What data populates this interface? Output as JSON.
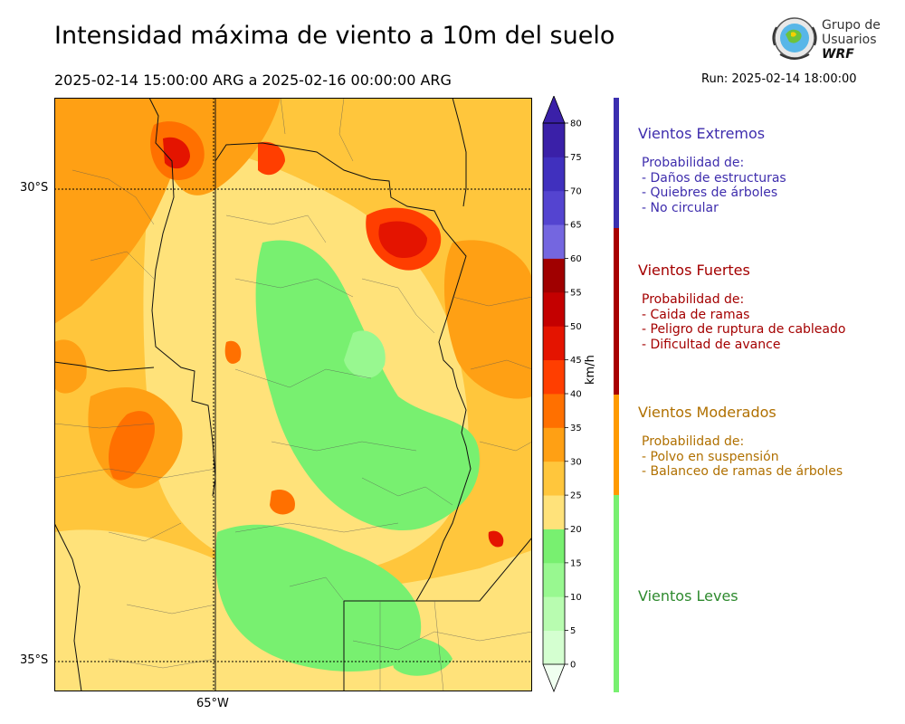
{
  "header": {
    "title": "Intensidad máxima de viento a 10m del suelo",
    "period": "2025-02-14 15:00:00 ARG  a  2025-02-16 00:00:00 ARG",
    "run": "Run: 2025-02-14 18:00:00"
  },
  "logo": {
    "line1": "Grupo de",
    "line2": "Usuarios",
    "line3": "WRF"
  },
  "map": {
    "lat_labels": [
      "30°S",
      "35°S"
    ],
    "lon_labels": [
      "65°W"
    ]
  },
  "colorbar": {
    "unit": "km/h",
    "ticks": [
      "0",
      "5",
      "10",
      "15",
      "20",
      "25",
      "30",
      "35",
      "40",
      "45",
      "50",
      "55",
      "60",
      "65",
      "70",
      "75",
      "80"
    ],
    "colors": [
      "#f0fff0",
      "#d4ffd0",
      "#b8fcb0",
      "#98f890",
      "#78f070",
      "#ffe27a",
      "#ffc63c",
      "#ffa014",
      "#ff7000",
      "#ff3e00",
      "#e41400",
      "#c40000",
      "#a00000",
      "#7466e0",
      "#5444d0",
      "#4030be",
      "#3a20a8"
    ]
  },
  "categories": [
    {
      "title": "Vientos Extremos",
      "desc": "Probabilidad de:\n- Daños de estructuras\n- Quiebres de árboles\n- No circular",
      "color": "#3e2dad",
      "band": "#3b2fb0"
    },
    {
      "title": "Vientos Fuertes",
      "desc": "Probabilidad de:\n- Caida de ramas\n- Peligro de ruptura de cableado\n- Dificultad de avance",
      "color": "#a40000",
      "band": "#a80000"
    },
    {
      "title": "Vientos Moderados",
      "desc": "Probabilidad de:\n- Polvo en suspensión\n- Balanceo de ramas de árboles",
      "color": "#b07000",
      "band": "#ff9a00"
    },
    {
      "title": "Vientos Leves",
      "desc": "",
      "color": "#2e8a2e",
      "band": "#78f070"
    }
  ]
}
